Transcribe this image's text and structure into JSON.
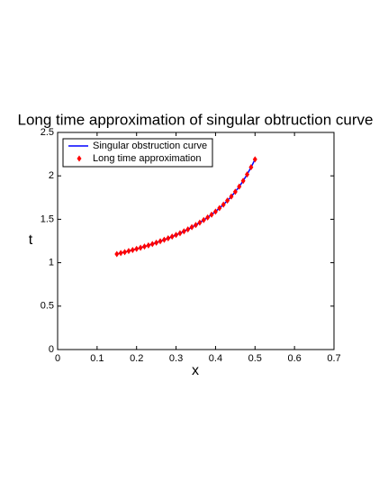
{
  "chart_data": {
    "type": "line",
    "title": "Long time approximation of singular obtruction curve",
    "xlabel": "x",
    "ylabel": "t",
    "x": [
      0.15,
      0.16,
      0.17,
      0.18,
      0.19,
      0.2,
      0.21,
      0.22,
      0.23,
      0.24,
      0.25,
      0.26,
      0.27,
      0.28,
      0.29,
      0.3,
      0.31,
      0.32,
      0.33,
      0.34,
      0.35,
      0.36,
      0.37,
      0.38,
      0.39,
      0.4,
      0.41,
      0.42,
      0.43,
      0.44,
      0.45,
      0.46,
      0.47,
      0.48,
      0.49,
      0.5
    ],
    "series": [
      {
        "name": "Singular obstruction curve",
        "color": "#0000ff",
        "marker": "none",
        "values": [
          1.1,
          1.111,
          1.122,
          1.134,
          1.146,
          1.159,
          1.172,
          1.186,
          1.2,
          1.215,
          1.231,
          1.247,
          1.264,
          1.281,
          1.3,
          1.32,
          1.34,
          1.362,
          1.384,
          1.409,
          1.434,
          1.462,
          1.491,
          1.521,
          1.554,
          1.589,
          1.629,
          1.669,
          1.715,
          1.762,
          1.817,
          1.876,
          1.943,
          2.016,
          2.099,
          2.19
        ]
      },
      {
        "name": "Long time approximation",
        "color": "#ff0000",
        "marker": "diamond",
        "values": [
          1.1,
          1.111,
          1.122,
          1.134,
          1.146,
          1.159,
          1.172,
          1.186,
          1.2,
          1.215,
          1.231,
          1.247,
          1.264,
          1.281,
          1.3,
          1.32,
          1.34,
          1.362,
          1.384,
          1.409,
          1.434,
          1.462,
          1.491,
          1.521,
          1.554,
          1.589,
          1.629,
          1.669,
          1.715,
          1.762,
          1.817,
          1.876,
          1.943,
          2.016,
          2.099,
          2.19
        ]
      }
    ],
    "xlim": [
      0,
      0.7
    ],
    "xticks": [
      0,
      0.1,
      0.2,
      0.3,
      0.4,
      0.5,
      0.6,
      0.7
    ],
    "ylim": [
      0,
      2.5
    ],
    "yticks": [
      0,
      0.5,
      1,
      1.5,
      2,
      2.5
    ],
    "grid": false,
    "legend": "upper left"
  }
}
